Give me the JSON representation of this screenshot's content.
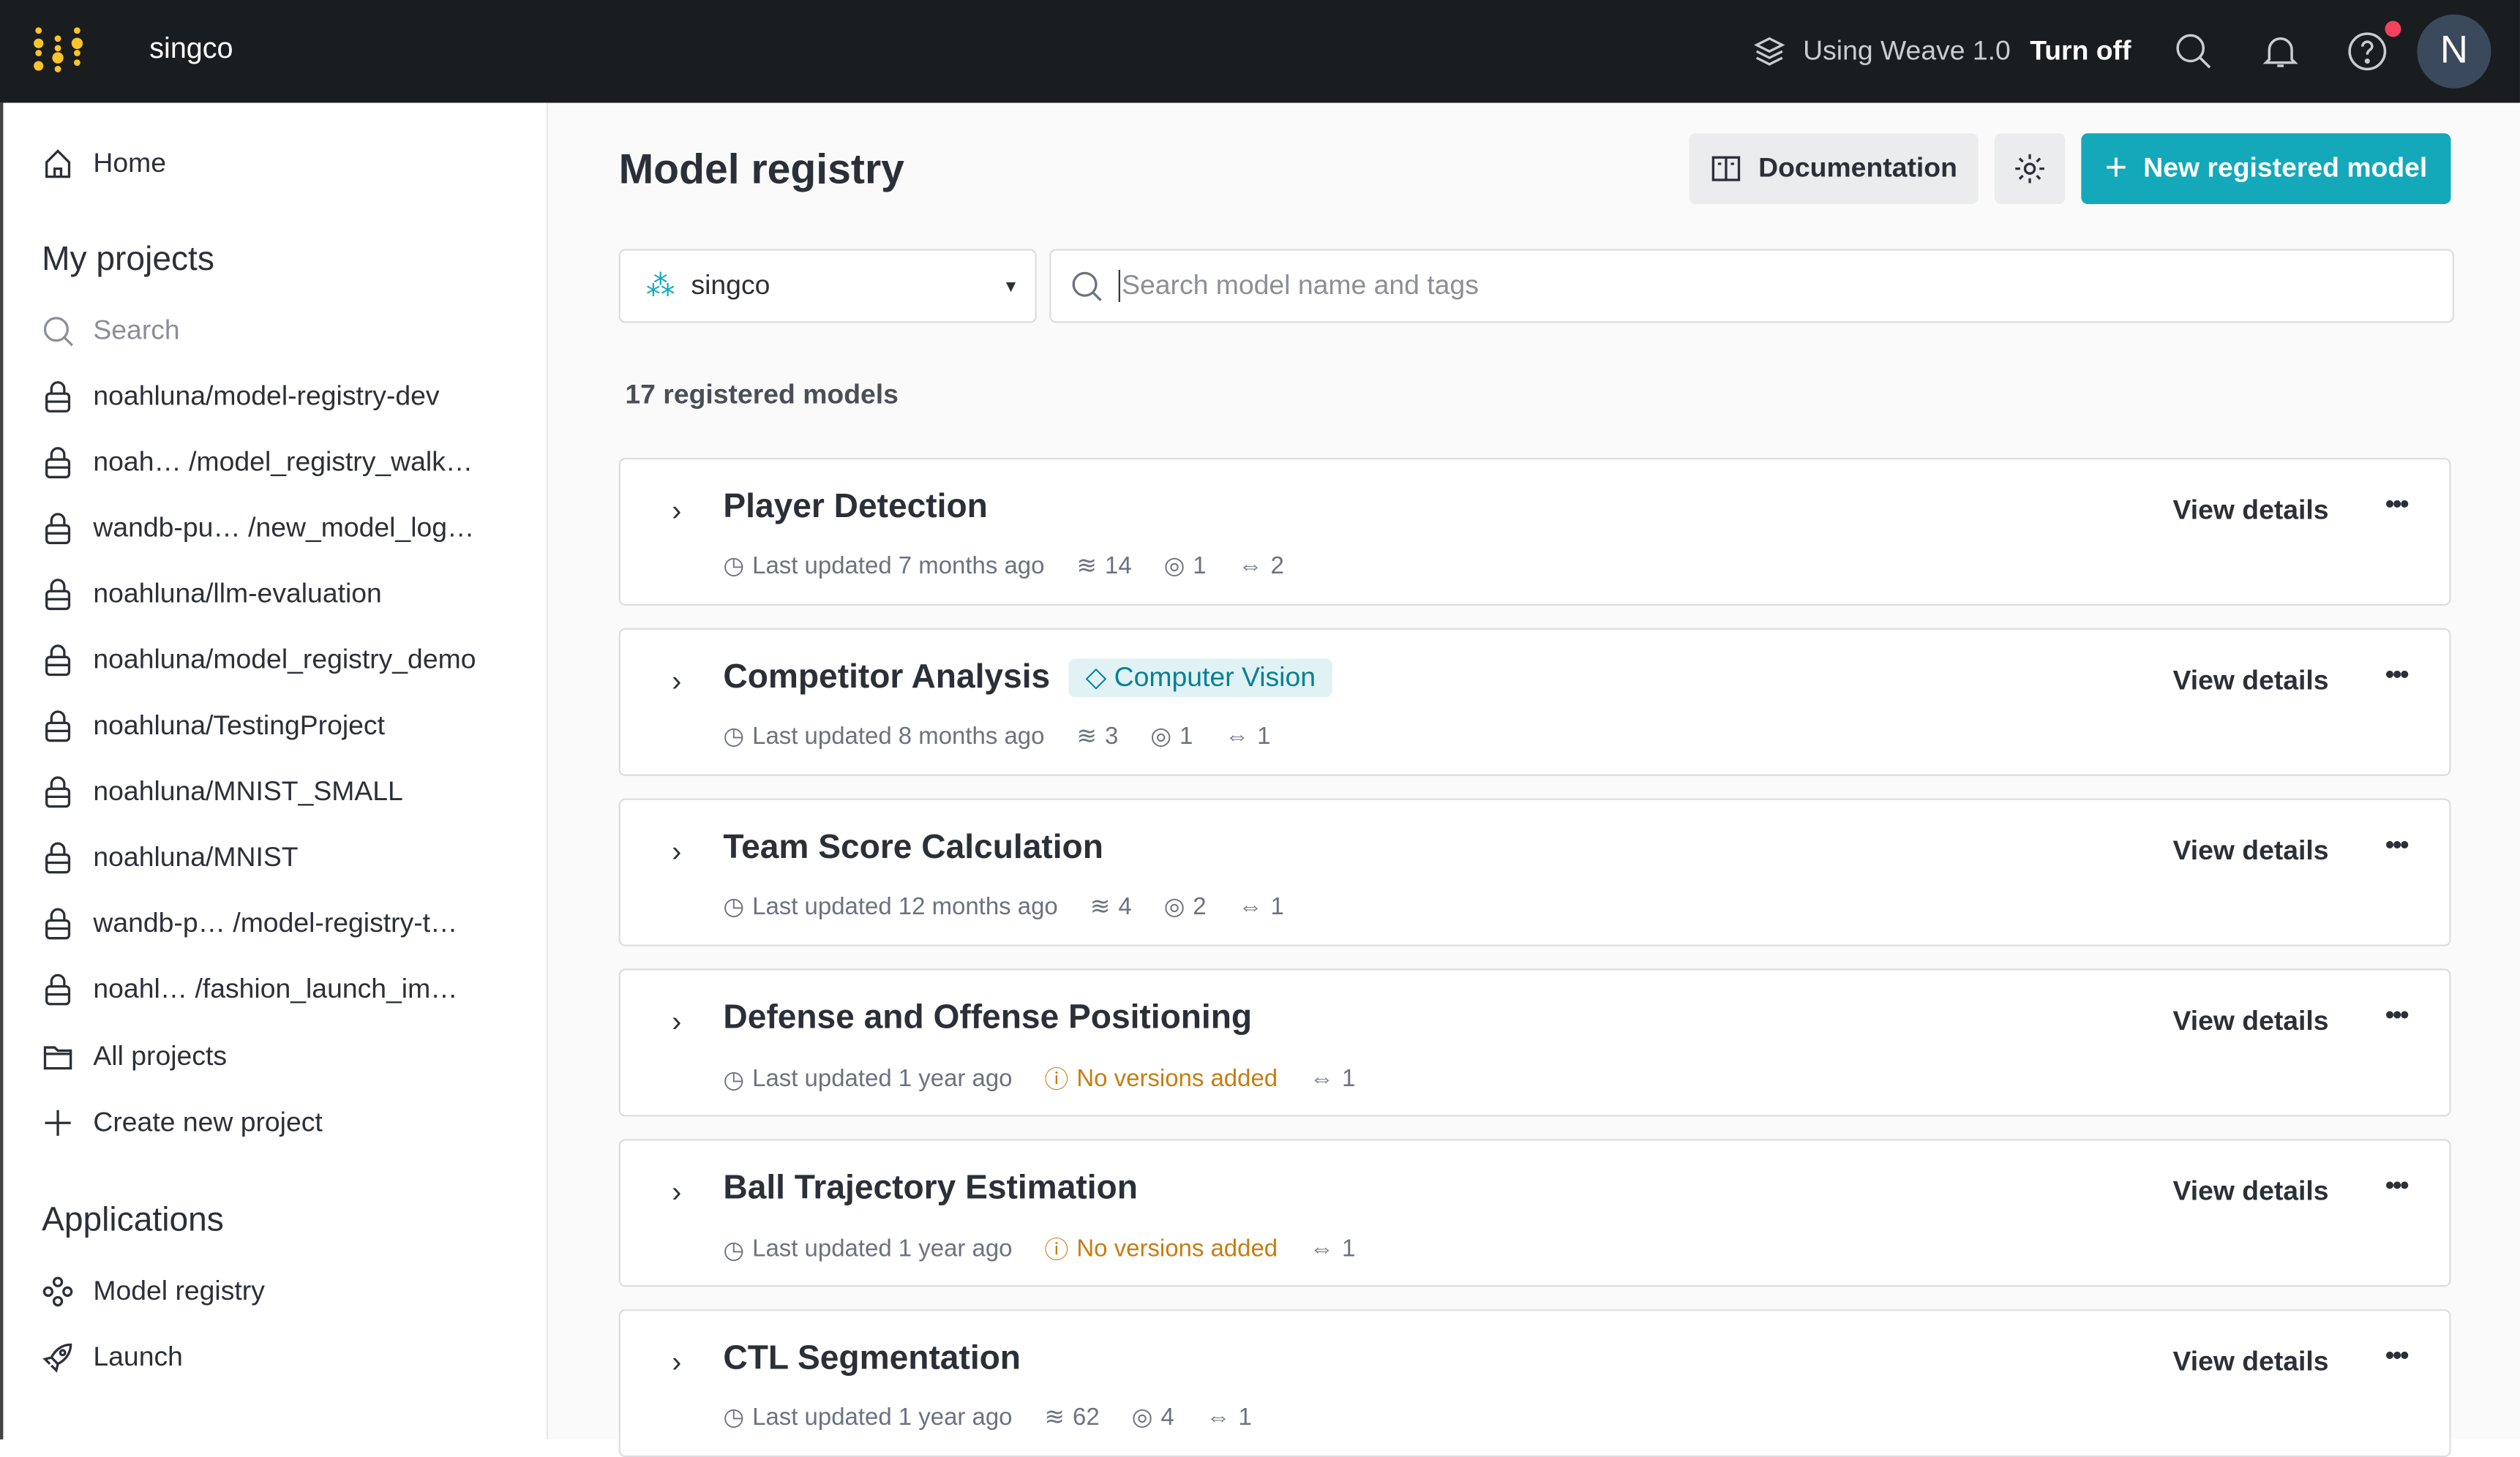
{
  "header": {
    "org": "singco",
    "weave_label": "Using Weave 1.0",
    "turn_off": "Turn off",
    "avatar": "N",
    "colors": {
      "bg": "#1a1d20",
      "logo": "#fcc42b",
      "notify": "#f5415c"
    }
  },
  "sidebar": {
    "home": "Home",
    "projects_heading": "My projects",
    "search_placeholder": "Search",
    "projects": [
      "noahluna/model-registry-dev",
      "noah… /model_registry_walk…",
      "wandb-pu… /new_model_log…",
      "noahluna/llm-evaluation",
      "noahluna/model_registry_demo",
      "noahluna/TestingProject",
      "noahluna/MNIST_SMALL",
      "noahluna/MNIST",
      "wandb-p… /model-registry-t…",
      "noahl… /fashion_launch_im…"
    ],
    "all_projects": "All projects",
    "create_project": "Create new project",
    "apps_heading": "Applications",
    "apps": [
      "Model registry",
      "Launch"
    ]
  },
  "main": {
    "title": "Model registry",
    "documentation": "Documentation",
    "new_model": "New registered model",
    "accent": "#13a9ba",
    "project_select": "singco",
    "search_placeholder": "Search model name and tags",
    "count": "17 registered models",
    "view_details": "View details",
    "models": [
      {
        "name": "Player Detection",
        "tag": null,
        "updated": "Last updated 7 months ago",
        "versions": "14",
        "users": "1",
        "links": "2"
      },
      {
        "name": "Competitor Analysis",
        "tag": "Computer Vision",
        "updated": "Last updated 8 months ago",
        "versions": "3",
        "users": "1",
        "links": "1"
      },
      {
        "name": "Team Score Calculation",
        "tag": null,
        "updated": "Last updated 12 months ago",
        "versions": "4",
        "users": "2",
        "links": "1"
      },
      {
        "name": "Defense and Offense Positioning",
        "tag": null,
        "updated": "Last updated 1 year ago",
        "warning": "No versions added",
        "links": "1"
      },
      {
        "name": "Ball Trajectory Estimation",
        "tag": null,
        "updated": "Last updated 1 year ago",
        "warning": "No versions added",
        "links": "1"
      },
      {
        "name": "CTL Segmentation",
        "tag": null,
        "updated": "Last updated 1 year ago",
        "versions": "62",
        "users": "4",
        "links": "1"
      }
    ]
  }
}
